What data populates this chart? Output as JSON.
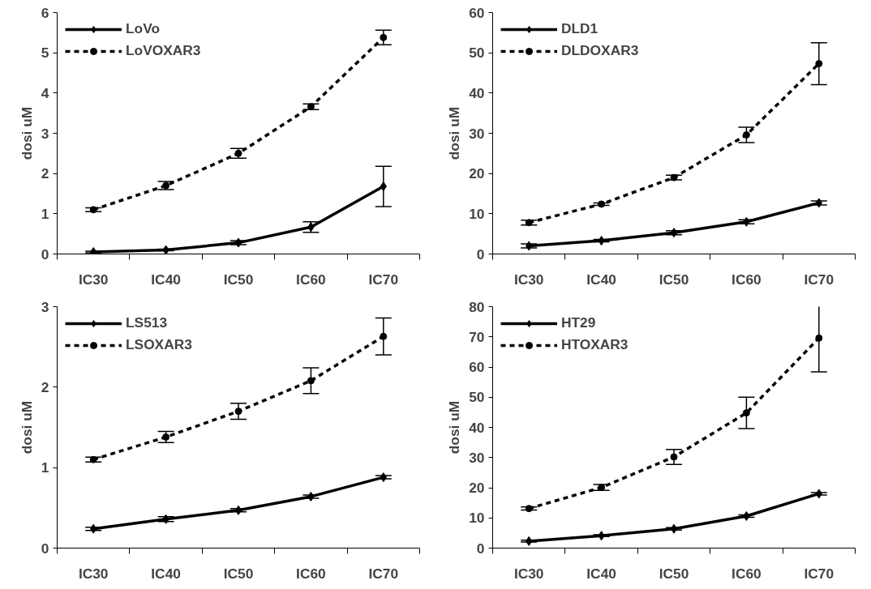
{
  "chart_data": [
    {
      "type": "line",
      "ylabel": "dosi uM",
      "categories": [
        "IC30",
        "IC40",
        "IC50",
        "IC60",
        "IC70"
      ],
      "ylim": [
        0,
        6
      ],
      "yticks": [
        0,
        1,
        2,
        3,
        4,
        5,
        6
      ],
      "grid": false,
      "legend": "top left",
      "series": [
        {
          "name": "LoVo",
          "color": "#000000",
          "marker": "diamond",
          "line_style": "solid",
          "values": [
            0.05,
            0.1,
            0.28,
            0.67,
            1.68
          ],
          "errors": [
            0.02,
            0.02,
            0.05,
            0.13,
            0.5
          ]
        },
        {
          "name": "LoVOXAR3",
          "color": "#000000",
          "marker": "circle",
          "line_style": "dashed",
          "values": [
            1.1,
            1.7,
            2.5,
            3.66,
            5.38
          ],
          "errors": [
            0.05,
            0.1,
            0.12,
            0.07,
            0.18
          ]
        }
      ]
    },
    {
      "type": "line",
      "ylabel": "dosi uM",
      "categories": [
        "IC30",
        "IC40",
        "IC50",
        "IC60",
        "IC70"
      ],
      "ylim": [
        0,
        60
      ],
      "yticks": [
        0,
        10,
        20,
        30,
        40,
        50,
        60
      ],
      "grid": false,
      "legend": "top left",
      "series": [
        {
          "name": "DLD1",
          "color": "#000000",
          "marker": "diamond",
          "line_style": "solid",
          "values": [
            2,
            3.3,
            5.3,
            8,
            12.7
          ],
          "errors": [
            0.5,
            0.3,
            0.5,
            0.5,
            0.5
          ]
        },
        {
          "name": "DLDOXAR3",
          "color": "#000000",
          "marker": "circle",
          "line_style": "dashed",
          "values": [
            7.8,
            12.4,
            19,
            29.6,
            47.3
          ],
          "errors": [
            0.6,
            0.3,
            0.6,
            1.9,
            5.2
          ]
        }
      ]
    },
    {
      "type": "line",
      "ylabel": "dosi uM",
      "categories": [
        "IC30",
        "IC40",
        "IC50",
        "IC60",
        "IC70"
      ],
      "ylim": [
        0,
        3
      ],
      "yticks": [
        0,
        1,
        2,
        3
      ],
      "grid": false,
      "legend": "top left",
      "series": [
        {
          "name": "LS513",
          "color": "#000000",
          "marker": "diamond",
          "line_style": "solid",
          "values": [
            0.24,
            0.36,
            0.47,
            0.64,
            0.88
          ],
          "errors": [
            0.02,
            0.03,
            0.02,
            0.02,
            0.02
          ]
        },
        {
          "name": "LSOXAR3",
          "color": "#000000",
          "marker": "circle",
          "line_style": "dashed",
          "values": [
            1.1,
            1.38,
            1.7,
            2.08,
            2.63
          ],
          "errors": [
            0.03,
            0.07,
            0.1,
            0.16,
            0.23
          ]
        }
      ]
    },
    {
      "type": "line",
      "ylabel": "dosi uM",
      "categories": [
        "IC30",
        "IC40",
        "IC50",
        "IC60",
        "IC70"
      ],
      "ylim": [
        0,
        80
      ],
      "yticks": [
        0,
        10,
        20,
        30,
        40,
        50,
        60,
        70,
        80
      ],
      "grid": false,
      "legend": "top left",
      "series": [
        {
          "name": "HT29",
          "color": "#000000",
          "marker": "diamond",
          "line_style": "solid",
          "values": [
            2.3,
            4.1,
            6.4,
            10.6,
            18
          ],
          "errors": [
            0.3,
            0.3,
            0.4,
            0.4,
            0.4
          ]
        },
        {
          "name": "HTOXAR3",
          "color": "#000000",
          "marker": "circle",
          "line_style": "dashed",
          "values": [
            13.1,
            20.1,
            30.2,
            44.8,
            69.6
          ],
          "errors": [
            0.5,
            1,
            2.5,
            5.2,
            11.2
          ]
        }
      ]
    }
  ]
}
